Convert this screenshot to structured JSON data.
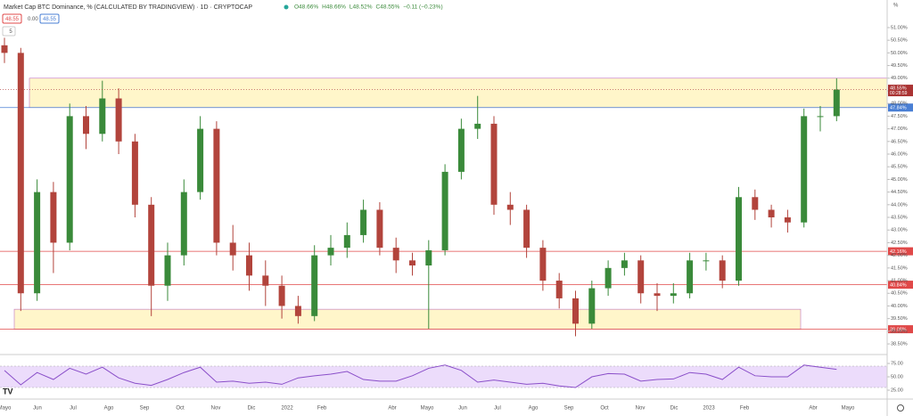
{
  "header": {
    "title": "Market Cap BTC Dominance, % (CALCULATED BY TRADINGVIEW) · 1D · CRYPTOCAP",
    "ohlc": [
      "O48.66%",
      "H48.66%",
      "L48.52%",
      "C48.55%",
      "−0.11 (−0.23%)"
    ],
    "row2": [
      "48.55",
      "0.00",
      "48.55"
    ],
    "indicator": "5",
    "unit": "%"
  },
  "x_labels": [
    "Mayo",
    "Jun",
    "Jul",
    "Ago",
    "Sep",
    "Oct",
    "Nov",
    "Dic",
    "2022",
    "Feb",
    "Abr",
    "Mayo",
    "Jun",
    "Jul",
    "Ago",
    "Sep",
    "Oct",
    "Nov",
    "Dic",
    "2023",
    "Feb",
    "Abr",
    "Mayo"
  ],
  "chart_data": [
    {
      "type": "candlestick",
      "up_color": "#3a8a3a",
      "down_color": "#b2443c",
      "open": [
        50.3,
        50.0,
        40.5,
        44.5,
        42.5,
        47.5,
        46.8,
        48.2,
        46.5,
        44.0,
        40.8,
        42.0,
        44.5,
        47.0,
        42.5,
        42.0,
        41.2,
        40.8,
        40.0,
        39.6,
        42.0,
        42.3,
        42.8,
        43.8,
        42.3,
        41.8,
        41.6,
        42.2,
        45.3,
        47.0,
        47.2,
        44.0,
        43.8,
        42.3,
        41.0,
        40.3,
        39.3,
        40.7,
        41.5,
        41.8,
        40.5,
        40.4,
        40.5,
        41.8,
        41.8,
        41.0,
        44.3,
        43.8,
        43.5,
        43.3,
        47.5,
        47.5
      ],
      "high": [
        50.6,
        50.2,
        45.0,
        44.9,
        48.0,
        47.9,
        48.9,
        48.6,
        46.8,
        44.3,
        42.5,
        45.0,
        47.5,
        47.3,
        43.2,
        42.5,
        41.8,
        41.2,
        40.4,
        42.4,
        42.8,
        43.3,
        44.2,
        44.1,
        42.7,
        42.1,
        42.6,
        45.6,
        47.4,
        48.3,
        47.5,
        44.5,
        44.0,
        42.6,
        41.3,
        40.6,
        41.0,
        41.8,
        42.1,
        42.0,
        40.9,
        40.9,
        42.1,
        42.1,
        42.0,
        44.7,
        44.6,
        44.0,
        43.8,
        47.8,
        47.9,
        49.0
      ],
      "low": [
        49.6,
        39.8,
        40.2,
        41.3,
        42.2,
        46.2,
        46.5,
        46.0,
        43.5,
        39.6,
        40.2,
        41.6,
        44.2,
        42.0,
        41.4,
        40.6,
        40.0,
        39.5,
        39.3,
        39.4,
        41.6,
        41.9,
        42.5,
        42.0,
        41.3,
        41.2,
        39.1,
        42.0,
        45.0,
        46.6,
        43.6,
        43.2,
        41.9,
        40.6,
        39.9,
        38.8,
        39.1,
        40.4,
        41.2,
        40.1,
        39.8,
        40.1,
        40.3,
        41.4,
        40.7,
        40.8,
        43.4,
        43.1,
        42.9,
        43.1,
        46.9,
        47.3
      ],
      "close": [
        50.0,
        40.5,
        44.5,
        42.5,
        47.5,
        46.8,
        48.2,
        46.5,
        44.0,
        40.8,
        42.0,
        44.5,
        47.0,
        42.5,
        42.0,
        41.2,
        40.8,
        40.0,
        39.6,
        42.0,
        42.3,
        42.8,
        43.8,
        42.3,
        41.8,
        41.6,
        42.2,
        45.3,
        47.0,
        47.2,
        44.0,
        43.8,
        42.3,
        41.0,
        40.3,
        39.3,
        40.7,
        41.5,
        41.8,
        40.5,
        40.4,
        40.5,
        41.8,
        41.8,
        41.0,
        44.3,
        43.8,
        43.5,
        43.3,
        47.5,
        47.5,
        48.55
      ],
      "ylim": [
        38.08,
        52.09
      ],
      "yticks": [
        {
          "value": 51,
          "label": "51.00%"
        },
        {
          "value": 50.5,
          "label": "50.50%"
        },
        {
          "value": 50,
          "label": "50.00%"
        },
        {
          "value": 49.5,
          "label": "49.50%"
        },
        {
          "value": 49,
          "label": "49.00%"
        },
        {
          "value": 48.5,
          "label": "48.50%"
        },
        {
          "value": 48,
          "label": "48.00%"
        },
        {
          "value": 47.5,
          "label": "47.50%"
        },
        {
          "value": 47,
          "label": "47.00%"
        },
        {
          "value": 46.5,
          "label": "46.50%"
        },
        {
          "value": 46,
          "label": "46.00%"
        },
        {
          "value": 45.5,
          "label": "45.50%"
        },
        {
          "value": 45,
          "label": "45.00%"
        },
        {
          "value": 44.5,
          "label": "44.50%"
        },
        {
          "value": 44,
          "label": "44.00%"
        },
        {
          "value": 43.5,
          "label": "43.50%"
        },
        {
          "value": 43,
          "label": "43.00%"
        },
        {
          "value": 42.5,
          "label": "42.50%"
        },
        {
          "value": 42,
          "label": "42.00%"
        },
        {
          "value": 41.5,
          "label": "41.50%"
        },
        {
          "value": 41,
          "label": "41.00%"
        },
        {
          "value": 40.5,
          "label": "40.50%"
        },
        {
          "value": 40,
          "label": "40.00%"
        },
        {
          "value": 39.5,
          "label": "39.50%"
        },
        {
          "value": 39,
          "label": "39.00%"
        },
        {
          "value": 38.5,
          "label": "38.50%"
        }
      ],
      "hlines": [
        {
          "value": 47.84,
          "label": "47.84%",
          "color": "#4a7fd4"
        },
        {
          "value": 42.16,
          "label": "42.16%",
          "color": "#e04848"
        },
        {
          "value": 40.84,
          "label": "40.84%",
          "color": "#e04848"
        },
        {
          "value": 39.08,
          "label": "39.08%",
          "color": "#e04848"
        }
      ],
      "zones": [
        {
          "low": 47.84,
          "high": 49.0
        },
        {
          "low": 39.08,
          "high": 39.87
        }
      ],
      "zone_color": "#fff2b3",
      "last_price": {
        "value": 48.55,
        "label": "48.55%",
        "countdown": "00:28:59",
        "color": "#a33"
      }
    },
    {
      "type": "line",
      "name": "RSI",
      "color": "#8a4fc9",
      "band": [
        30,
        70
      ],
      "band_color": "#ecdcfb",
      "values": [
        62,
        35,
        58,
        45,
        66,
        55,
        68,
        48,
        38,
        34,
        45,
        58,
        68,
        40,
        42,
        38,
        40,
        36,
        48,
        52,
        55,
        60,
        45,
        42,
        42,
        52,
        66,
        72,
        62,
        40,
        44,
        40,
        36,
        38,
        33,
        30,
        50,
        56,
        55,
        42,
        45,
        46,
        58,
        55,
        45,
        68,
        52,
        50,
        50,
        72,
        68,
        64
      ],
      "ylim": [
        11.7,
        86.7
      ],
      "yticks": [
        {
          "value": 75,
          "label": "75.00"
        },
        {
          "value": 50,
          "label": "50.00"
        },
        {
          "value": 25,
          "label": "25.00"
        }
      ]
    }
  ]
}
